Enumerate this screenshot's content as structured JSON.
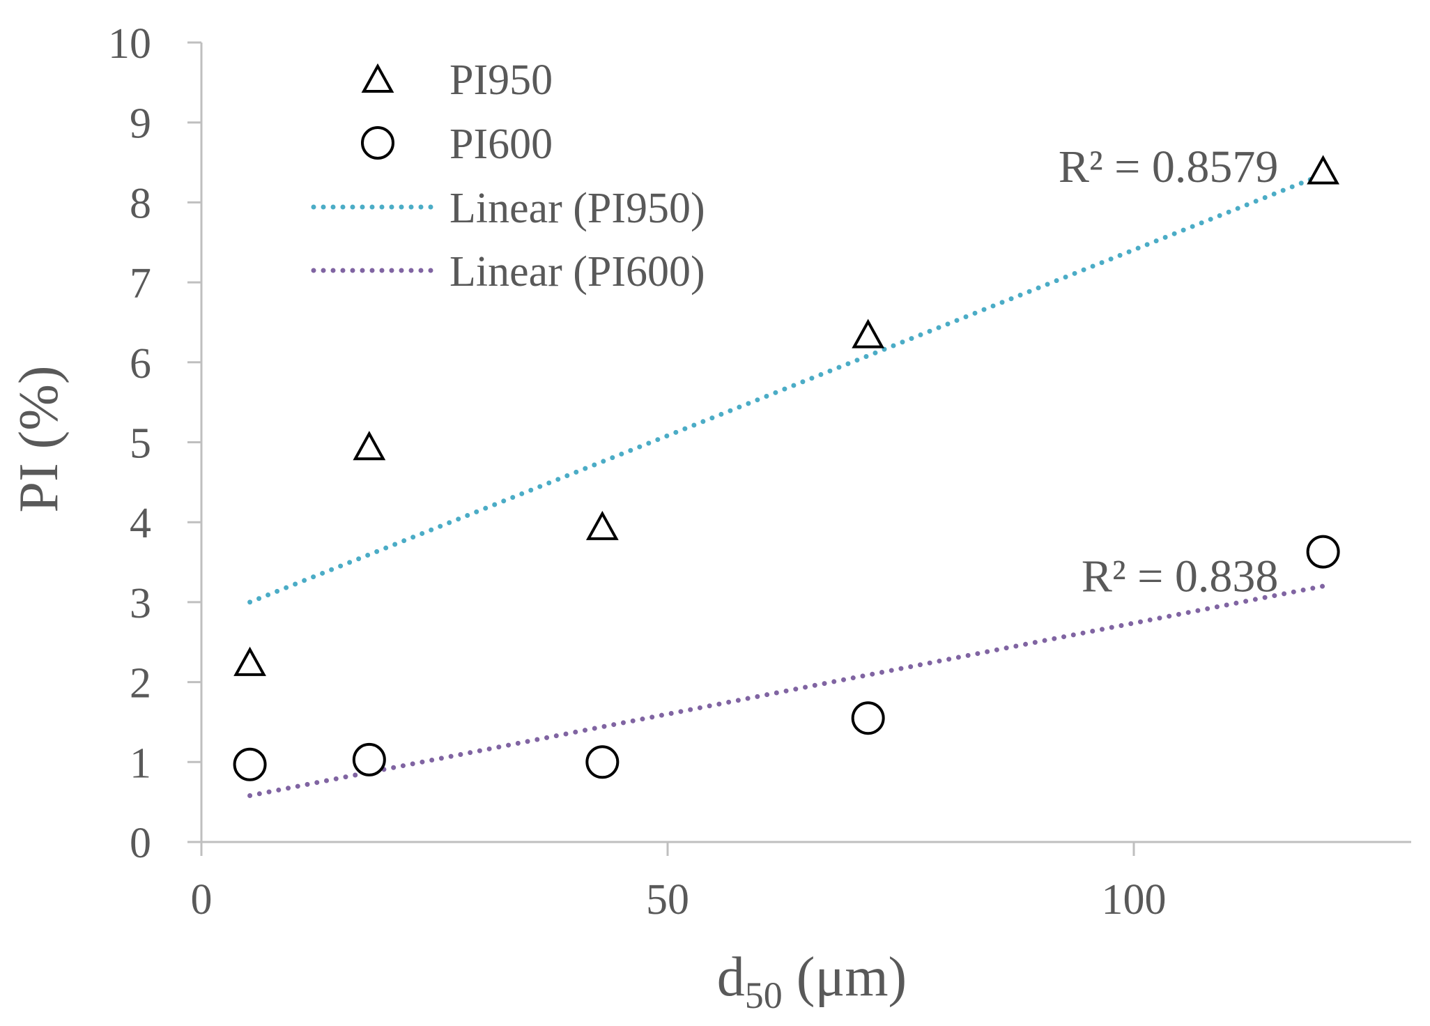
{
  "chart_data": {
    "type": "scatter",
    "title": "",
    "xlabel": {
      "main": "d",
      "sub": "50",
      "rest": " (μm)"
    },
    "ylabel": "PI (%)",
    "xlim": [
      0,
      130
    ],
    "ylim": [
      0,
      10
    ],
    "xticks": [
      {
        "value": 0,
        "label": "0"
      },
      {
        "value": 50,
        "label": "50"
      },
      {
        "value": 100,
        "label": "100"
      }
    ],
    "yticks": [
      {
        "value": 0,
        "label": "0"
      },
      {
        "value": 1,
        "label": "1"
      },
      {
        "value": 2,
        "label": "2"
      },
      {
        "value": 3,
        "label": "3"
      },
      {
        "value": 4,
        "label": "4"
      },
      {
        "value": 5,
        "label": "5"
      },
      {
        "value": 6,
        "label": "6"
      },
      {
        "value": 7,
        "label": "7"
      },
      {
        "value": 8,
        "label": "8"
      },
      {
        "value": 9,
        "label": "9"
      },
      {
        "value": 10,
        "label": "10"
      }
    ],
    "grid": false,
    "legend_position": "top-left",
    "series": [
      {
        "name": "PI950",
        "marker": "triangle",
        "x": [
          5.2,
          18.0,
          43.0,
          71.5,
          120.3
        ],
        "y": [
          2.25,
          4.95,
          3.95,
          6.35,
          8.4
        ]
      },
      {
        "name": "PI600",
        "marker": "circle",
        "x": [
          5.2,
          18.0,
          43.0,
          71.5,
          120.3
        ],
        "y": [
          0.97,
          1.03,
          1.0,
          1.55,
          3.63
        ]
      }
    ],
    "trendlines": [
      {
        "name": "Linear (PI950)",
        "series": "PI950",
        "color": "#4BACC6",
        "x_range": [
          5.2,
          120.3
        ],
        "y_range": [
          3.0,
          8.35
        ],
        "r2_label": "R² = 0.8579",
        "r2_anchor": [
          115.5,
          8.3
        ]
      },
      {
        "name": "Linear (PI600)",
        "series": "PI600",
        "color": "#8064A2",
        "x_range": [
          5.2,
          120.3
        ],
        "y_range": [
          0.58,
          3.2
        ],
        "r2_label": "R² = 0.838",
        "r2_anchor": [
          115.5,
          3.18
        ]
      }
    ],
    "legend": [
      {
        "label": "PI950",
        "kind": "triangle"
      },
      {
        "label": "PI600",
        "kind": "circle"
      },
      {
        "label": "Linear (PI950)",
        "kind": "line",
        "color": "#4BACC6"
      },
      {
        "label": "Linear (PI600)",
        "kind": "line",
        "color": "#8064A2"
      }
    ],
    "colors": {
      "axis": "#BFBFBF",
      "text": "#595959",
      "marker_stroke": "#000000"
    }
  }
}
